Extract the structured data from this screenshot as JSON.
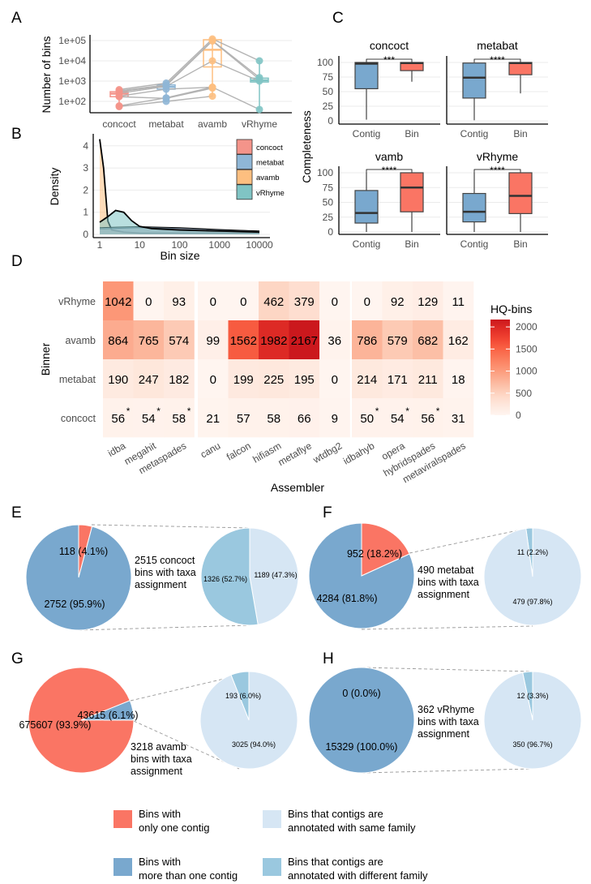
{
  "panel_labels": {
    "A": "A",
    "B": "B",
    "C": "C",
    "D": "D",
    "E": "E",
    "F": "F",
    "G": "G",
    "H": "H"
  },
  "colors": {
    "concoct": "#f4948a",
    "metabat": "#8fb6d6",
    "avamb": "#fdbf80",
    "vRhyme": "#80c4c4",
    "one_contig": "#fa7564",
    "multi_contig": "#79a8ce",
    "same_family": "#d6e6f4",
    "different_family": "#9ac8df"
  },
  "chart_data": [
    {
      "id": "A",
      "type": "box",
      "ylabel": "Number of bins",
      "yscale": "log10",
      "categories": [
        "concoct",
        "metabat",
        "avamb",
        "vRhyme"
      ],
      "y_ticks": [
        {
          "value": 100,
          "label": "1e+02"
        },
        {
          "value": 1000,
          "label": "1e+03"
        },
        {
          "value": 10000,
          "label": "1e+04"
        },
        {
          "value": 100000,
          "label": "1e+05"
        }
      ],
      "boxes": [
        {
          "min": 55,
          "q1": 170,
          "median": 240,
          "q3": 300,
          "max": 400
        },
        {
          "min": 140,
          "q1": 400,
          "median": 520,
          "q3": 650,
          "max": 800
        },
        {
          "min": 180,
          "q1": 5000,
          "median": 35000,
          "q3": 110000,
          "max": 120000
        },
        {
          "min": 40,
          "q1": 900,
          "median": 1100,
          "q3": 1400,
          "max": 10000
        }
      ],
      "samples": [
        [
          380,
          800,
          120000,
          10000
        ],
        [
          330,
          650,
          100000,
          1500
        ],
        [
          300,
          600,
          95000,
          1200
        ],
        [
          250,
          550,
          10000,
          1000
        ],
        [
          180,
          400,
          500,
          40
        ],
        [
          170,
          140,
          450,
          null
        ],
        [
          60,
          150,
          500,
          null
        ],
        [
          55,
          100,
          180,
          null
        ]
      ]
    },
    {
      "id": "B",
      "type": "area",
      "xlabel": "Bin size",
      "ylabel": "Density",
      "xscale": "log10",
      "x_ticks": [
        1,
        10,
        100,
        1000,
        10000
      ],
      "y_ticks": [
        0,
        1,
        2,
        3,
        4
      ],
      "legend_position": "top-right",
      "series": [
        {
          "name": "concoct",
          "points": [
            [
              1,
              0.25
            ],
            [
              10,
              0.3
            ],
            [
              100,
              0.27
            ],
            [
              1000,
              0.2
            ],
            [
              10000,
              0.15
            ]
          ]
        },
        {
          "name": "metabat",
          "points": [
            [
              1,
              0.3
            ],
            [
              3,
              0.33
            ],
            [
              10,
              0.35
            ],
            [
              100,
              0.3
            ],
            [
              1000,
              0.22
            ],
            [
              10000,
              0.15
            ]
          ]
        },
        {
          "name": "avamb",
          "points": [
            [
              1,
              4.3
            ],
            [
              1.25,
              3.0
            ],
            [
              1.6,
              0.6
            ],
            [
              2,
              0.2
            ],
            [
              4,
              0.1
            ],
            [
              10,
              0.06
            ],
            [
              10000,
              0.05
            ]
          ]
        },
        {
          "name": "vRhyme",
          "points": [
            [
              1,
              0.55
            ],
            [
              1.6,
              0.8
            ],
            [
              2.5,
              1.08
            ],
            [
              4,
              1.0
            ],
            [
              6.3,
              0.62
            ],
            [
              10,
              0.36
            ],
            [
              20,
              0.26
            ],
            [
              100,
              0.2
            ],
            [
              1000,
              0.15
            ],
            [
              10000,
              0.1
            ]
          ]
        }
      ]
    },
    {
      "id": "C",
      "type": "box",
      "ylabel": "Completeness",
      "ylim": [
        0,
        100
      ],
      "y_ticks": [
        0,
        25,
        50,
        75,
        100
      ],
      "categories": [
        "Contig",
        "Bin"
      ],
      "facets": [
        {
          "title": "concoct",
          "signif": "***",
          "boxes": [
            {
              "min": 2,
              "q1": 55,
              "median": 98,
              "q3": 100,
              "max": 100
            },
            {
              "min": 67,
              "q1": 86,
              "median": 99,
              "q3": 100,
              "max": 100
            }
          ]
        },
        {
          "title": "metabat",
          "signif": "****",
          "boxes": [
            {
              "min": 1,
              "q1": 39,
              "median": 74,
              "q3": 99,
              "max": 99
            },
            {
              "min": 47,
              "q1": 79,
              "median": 99,
              "q3": 100,
              "max": 100
            }
          ]
        },
        {
          "title": "vamb",
          "signif": "****",
          "boxes": [
            {
              "min": 0,
              "q1": 15,
              "median": 32,
              "q3": 70,
              "max": 100
            },
            {
              "min": 0,
              "q1": 34,
              "median": 75,
              "q3": 100,
              "max": 100
            }
          ]
        },
        {
          "title": "vRhyme",
          "signif": "****",
          "boxes": [
            {
              "min": 0,
              "q1": 17,
              "median": 34,
              "q3": 65,
              "max": 100
            },
            {
              "min": 0,
              "q1": 31,
              "median": 61,
              "q3": 100,
              "max": 100
            }
          ]
        }
      ]
    },
    {
      "id": "D",
      "type": "heatmap",
      "xlabel": "Assembler",
      "ylabel": "Binner",
      "legend_title": "HQ-bins",
      "legend_ticks": [
        0,
        500,
        1000,
        1500,
        2000
      ],
      "color_range": [
        0,
        2167
      ],
      "columns": [
        "idba",
        "megahit",
        "metaspades",
        "canu",
        "falcon",
        "hifiasm",
        "metaflye",
        "wtdbg2",
        "idbahyb",
        "opera",
        "hybridspades",
        "metaviralspades"
      ],
      "rows": [
        {
          "name": "vRhyme",
          "values": [
            1042,
            0,
            93,
            0,
            0,
            462,
            379,
            0,
            0,
            92,
            129,
            11
          ],
          "starred": [
            false,
            false,
            false,
            false,
            false,
            false,
            false,
            false,
            false,
            false,
            false,
            false
          ]
        },
        {
          "name": "avamb",
          "values": [
            864,
            765,
            574,
            99,
            1562,
            1982,
            2167,
            36,
            786,
            579,
            682,
            162
          ],
          "starred": [
            false,
            false,
            false,
            false,
            false,
            false,
            false,
            false,
            false,
            false,
            false,
            false
          ]
        },
        {
          "name": "metabat",
          "values": [
            190,
            247,
            182,
            0,
            199,
            225,
            195,
            0,
            214,
            171,
            211,
            18
          ],
          "starred": [
            false,
            false,
            false,
            false,
            false,
            false,
            false,
            false,
            false,
            false,
            false,
            false
          ]
        },
        {
          "name": "concoct",
          "values": [
            56,
            54,
            58,
            21,
            57,
            58,
            66,
            9,
            50,
            54,
            56,
            31
          ],
          "starred": [
            true,
            true,
            true,
            false,
            false,
            false,
            false,
            false,
            true,
            true,
            true,
            false
          ]
        }
      ],
      "star_mark": "*"
    },
    {
      "id": "E",
      "type": "pie",
      "description": [
        "2515 concoct",
        "bins with taxa",
        "assignment"
      ],
      "main": [
        {
          "label": "118 (4.1%)",
          "value": 118,
          "category": "one_contig"
        },
        {
          "label": "2752 (95.9%)",
          "value": 2752,
          "category": "multi_contig"
        }
      ],
      "detail": [
        {
          "label": "1189 (47.3%)",
          "value": 1189,
          "category": "same_family"
        },
        {
          "label": "1326 (52.7%)",
          "value": 1326,
          "category": "different_family"
        }
      ]
    },
    {
      "id": "F",
      "type": "pie",
      "description": [
        "490 metabat",
        "bins with taxa",
        "assignment"
      ],
      "main": [
        {
          "label": "952 (18.2%)",
          "value": 952,
          "category": "one_contig"
        },
        {
          "label": "4284 (81.8%)",
          "value": 4284,
          "category": "multi_contig"
        }
      ],
      "detail": [
        {
          "label": "11 (2.2%)",
          "value": 11,
          "category": "different_family"
        },
        {
          "label": "479 (97.8%)",
          "value": 479,
          "category": "same_family"
        }
      ]
    },
    {
      "id": "G",
      "type": "pie",
      "description": [
        "3218 avamb",
        "bins with taxa",
        "assignment"
      ],
      "main": [
        {
          "label": "43615 (6.1%)",
          "value": 43615,
          "category": "multi_contig"
        },
        {
          "label": "675607 (93.9%)",
          "value": 675607,
          "category": "one_contig"
        }
      ],
      "detail": [
        {
          "label": "193 (6.0%)",
          "value": 193,
          "category": "different_family"
        },
        {
          "label": "3025 (94.0%)",
          "value": 3025,
          "category": "same_family"
        }
      ]
    },
    {
      "id": "H",
      "type": "pie",
      "description": [
        "362 vRhyme",
        "bins with taxa",
        "assignment"
      ],
      "main": [
        {
          "label": "0 (0.0%)",
          "value": 0,
          "category": "one_contig"
        },
        {
          "label": "15329 (100.0%)",
          "value": 15329,
          "category": "multi_contig"
        }
      ],
      "detail": [
        {
          "label": "12 (3.3%)",
          "value": 12,
          "category": "different_family"
        },
        {
          "label": "350 (96.7%)",
          "value": 350,
          "category": "same_family"
        }
      ]
    }
  ],
  "legend": [
    {
      "category": "one_contig",
      "lines": [
        "Bins with",
        "only one contig"
      ]
    },
    {
      "category": "same_family",
      "lines": [
        "Bins that contigs are",
        "annotated with same family"
      ]
    },
    {
      "category": "multi_contig",
      "lines": [
        "Bins with",
        "more than one contig"
      ]
    },
    {
      "category": "different_family",
      "lines": [
        "Bins that contigs are",
        "annotated with different family"
      ]
    }
  ]
}
